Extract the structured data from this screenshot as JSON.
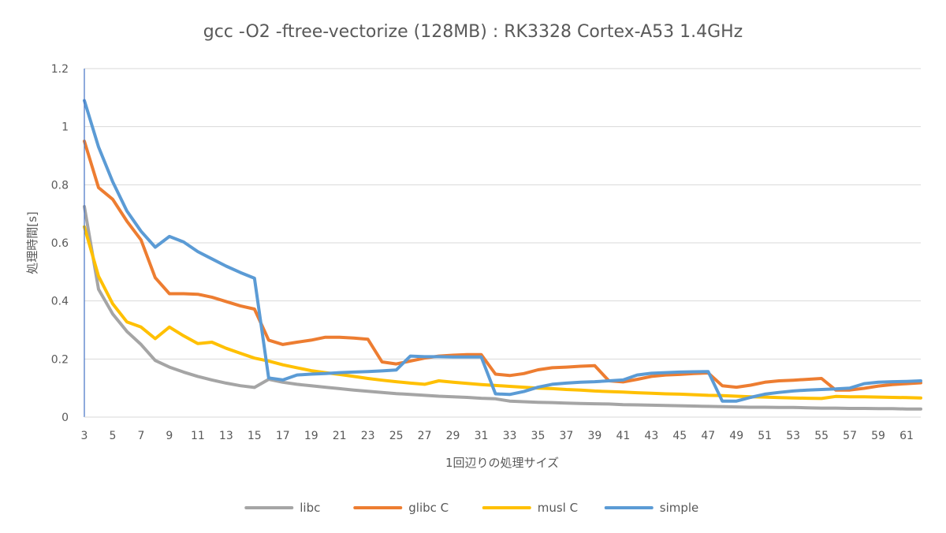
{
  "chart_data": {
    "type": "line",
    "title": "gcc -O2 -ftree-vectorize (128MB) : RK3328 Cortex-A53 1.4GHz",
    "xlabel": "1回辺りの処理サイズ",
    "ylabel": "処理時間[s]",
    "ylim": [
      0,
      1.2
    ],
    "yticks": [
      "0",
      "0.2",
      "0.4",
      "0.6",
      "0.8",
      "1",
      "1.2"
    ],
    "grid": true,
    "legend_position": "bottom",
    "x": [
      3,
      4,
      5,
      6,
      7,
      8,
      9,
      10,
      11,
      12,
      13,
      14,
      15,
      16,
      17,
      18,
      19,
      20,
      21,
      22,
      23,
      24,
      25,
      26,
      27,
      28,
      29,
      30,
      31,
      32,
      33,
      34,
      35,
      36,
      37,
      38,
      39,
      40,
      41,
      42,
      43,
      44,
      45,
      46,
      47,
      48,
      49,
      50,
      51,
      52,
      53,
      54,
      55,
      56,
      57,
      58,
      59,
      60,
      61,
      62
    ],
    "xtick_labels": [
      "3",
      "5",
      "7",
      "9",
      "11",
      "13",
      "15",
      "17",
      "19",
      "21",
      "23",
      "25",
      "27",
      "29",
      "31",
      "33",
      "35",
      "37",
      "39",
      "41",
      "43",
      "45",
      "47",
      "49",
      "51",
      "53",
      "55",
      "57",
      "59",
      "61"
    ],
    "series": [
      {
        "name": "libc",
        "color": "#a5a5a5",
        "values": [
          0.725,
          0.44,
          0.355,
          0.295,
          0.25,
          0.195,
          0.172,
          0.155,
          0.14,
          0.128,
          0.117,
          0.108,
          0.102,
          0.13,
          0.12,
          0.113,
          0.108,
          0.103,
          0.098,
          0.093,
          0.089,
          0.085,
          0.081,
          0.078,
          0.075,
          0.072,
          0.07,
          0.068,
          0.065,
          0.063,
          0.055,
          0.053,
          0.051,
          0.05,
          0.048,
          0.047,
          0.046,
          0.045,
          0.043,
          0.042,
          0.041,
          0.04,
          0.039,
          0.038,
          0.037,
          0.036,
          0.035,
          0.034,
          0.034,
          0.033,
          0.033,
          0.032,
          0.031,
          0.031,
          0.03,
          0.03,
          0.029,
          0.029,
          0.028,
          0.028
        ]
      },
      {
        "name": "glibc C",
        "color": "#ed7d31",
        "values": [
          0.95,
          0.79,
          0.75,
          0.675,
          0.61,
          0.48,
          0.425,
          0.425,
          0.423,
          0.413,
          0.398,
          0.383,
          0.372,
          0.265,
          0.25,
          0.258,
          0.265,
          0.275,
          0.275,
          0.272,
          0.268,
          0.19,
          0.183,
          0.193,
          0.203,
          0.21,
          0.213,
          0.215,
          0.215,
          0.148,
          0.143,
          0.15,
          0.163,
          0.17,
          0.172,
          0.175,
          0.177,
          0.125,
          0.121,
          0.13,
          0.14,
          0.145,
          0.147,
          0.15,
          0.152,
          0.108,
          0.103,
          0.11,
          0.12,
          0.125,
          0.127,
          0.13,
          0.133,
          0.093,
          0.093,
          0.099,
          0.107,
          0.112,
          0.115,
          0.118
        ]
      },
      {
        "name": "musl C",
        "color": "#ffc000",
        "values": [
          0.655,
          0.485,
          0.39,
          0.328,
          0.31,
          0.27,
          0.31,
          0.28,
          0.253,
          0.258,
          0.237,
          0.22,
          0.203,
          0.193,
          0.18,
          0.17,
          0.16,
          0.153,
          0.147,
          0.14,
          0.133,
          0.127,
          0.122,
          0.117,
          0.113,
          0.125,
          0.12,
          0.116,
          0.112,
          0.109,
          0.106,
          0.103,
          0.1,
          0.098,
          0.095,
          0.093,
          0.09,
          0.088,
          0.086,
          0.084,
          0.082,
          0.08,
          0.079,
          0.077,
          0.075,
          0.074,
          0.072,
          0.07,
          0.069,
          0.067,
          0.066,
          0.065,
          0.064,
          0.071,
          0.07,
          0.07,
          0.069,
          0.068,
          0.067,
          0.066
        ]
      },
      {
        "name": "simple",
        "color": "#5b9bd5",
        "values": [
          1.09,
          0.93,
          0.81,
          0.71,
          0.64,
          0.585,
          0.622,
          0.603,
          0.57,
          0.545,
          0.52,
          0.498,
          0.478,
          0.135,
          0.128,
          0.145,
          0.148,
          0.15,
          0.153,
          0.155,
          0.157,
          0.159,
          0.162,
          0.21,
          0.208,
          0.208,
          0.207,
          0.207,
          0.207,
          0.08,
          0.078,
          0.088,
          0.103,
          0.113,
          0.117,
          0.12,
          0.122,
          0.125,
          0.128,
          0.145,
          0.151,
          0.153,
          0.155,
          0.156,
          0.157,
          0.055,
          0.055,
          0.068,
          0.079,
          0.085,
          0.09,
          0.093,
          0.095,
          0.097,
          0.1,
          0.115,
          0.12,
          0.122,
          0.123,
          0.125
        ]
      }
    ]
  }
}
